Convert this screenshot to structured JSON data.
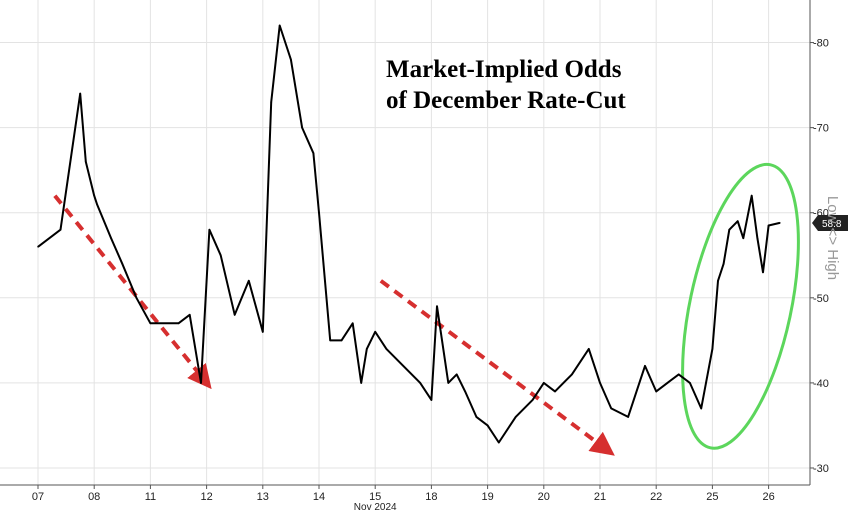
{
  "chart_data": {
    "type": "line",
    "title": "Market-Implied Odds",
    "title_line2": "of December Rate-Cut",
    "ylim": [
      28,
      85
    ],
    "y_axis_position": "right",
    "yticks": [
      30,
      40,
      50,
      60,
      70,
      80
    ],
    "ytick_labels": [
      "-30",
      "-40",
      "-50",
      "-60",
      "-70",
      "-80"
    ],
    "x_tick_labels": [
      "07",
      "08",
      "11",
      "12",
      "13",
      "14",
      "15",
      "18",
      "19",
      "20",
      "21",
      "22",
      "25",
      "26"
    ],
    "x_month_label": "Nov 2024",
    "last_value_label": "58.8",
    "side_label": "Low <> High",
    "grid": true,
    "line_color": "#000000",
    "trend_color": "#d62f2f",
    "highlight_color": "#5cd65c",
    "series": [
      {
        "x": [
          0,
          0.4,
          0.75,
          0.85,
          1.0,
          1.05,
          1.3,
          1.5,
          1.75,
          2.0,
          2.5,
          2.7,
          2.9,
          3.05,
          3.25,
          3.5,
          3.75,
          4.0,
          4.15,
          4.3,
          4.5,
          4.7,
          4.9,
          5.0,
          5.2,
          5.4,
          5.6,
          5.75,
          5.85,
          6.0,
          6.2,
          6.5,
          6.8,
          7.0,
          7.1,
          7.3,
          7.45,
          7.6,
          7.8,
          8.0,
          8.2,
          8.5,
          8.8,
          9.0,
          9.2,
          9.5,
          9.8,
          10.0,
          10.2,
          10.5,
          10.8,
          11.0,
          11.2,
          11.4,
          11.6,
          11.8,
          12.0,
          12.1,
          12.2,
          12.3,
          12.45,
          12.55,
          12.7,
          12.8,
          12.9,
          13.0,
          13.2
        ],
        "values": [
          56,
          58,
          74,
          66,
          62,
          61,
          57,
          54,
          50,
          47,
          47,
          48,
          40,
          58,
          55,
          48,
          52,
          46,
          73,
          82,
          78,
          70,
          67,
          60,
          45,
          45,
          47,
          40,
          44,
          46,
          44,
          42,
          40,
          38,
          49,
          40,
          41,
          39,
          36,
          35,
          33,
          36,
          38,
          40,
          39,
          41,
          44,
          40,
          37,
          36,
          42,
          39,
          40,
          41,
          40,
          37,
          44,
          52,
          54,
          58,
          59,
          57,
          62,
          57,
          53,
          58.5,
          58.8
        ]
      }
    ],
    "trend_arrows": [
      {
        "from": [
          0.3,
          62
        ],
        "to": [
          3.0,
          40
        ]
      },
      {
        "from": [
          6.1,
          52
        ],
        "to": [
          10.15,
          32
        ]
      }
    ],
    "highlight_ellipse": {
      "center": [
        12.5,
        49
      ],
      "rx": 0.9,
      "ry": 17
    }
  }
}
